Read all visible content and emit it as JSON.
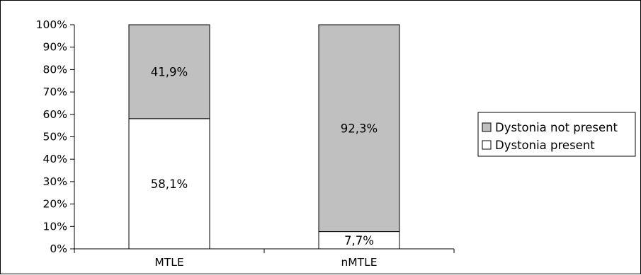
{
  "chart_data": {
    "type": "bar",
    "stacked": true,
    "percent_stacked": true,
    "categories": [
      "MTLE",
      "nMTLE"
    ],
    "series": [
      {
        "name": "Dystonia present",
        "values": [
          58.1,
          7.7
        ],
        "labels": [
          "58,1%",
          "7,7%"
        ],
        "color": "#ffffff"
      },
      {
        "name": "Dystonia not present",
        "values": [
          41.9,
          92.3
        ],
        "labels": [
          "41,9%",
          "92,3%"
        ],
        "color": "#c0c0c0"
      }
    ],
    "ylim": [
      0,
      100
    ],
    "yticks": [
      0,
      10,
      20,
      30,
      40,
      50,
      60,
      70,
      80,
      90,
      100
    ],
    "ytick_labels": [
      "0%",
      "10%",
      "20%",
      "30%",
      "40%",
      "50%",
      "60%",
      "70%",
      "80%",
      "90%",
      "100%"
    ],
    "title": "",
    "xlabel": "",
    "ylabel": "",
    "grid": false,
    "legend": {
      "placement": "right",
      "entries": [
        "Dystonia not present",
        "Dystonia present"
      ]
    }
  }
}
